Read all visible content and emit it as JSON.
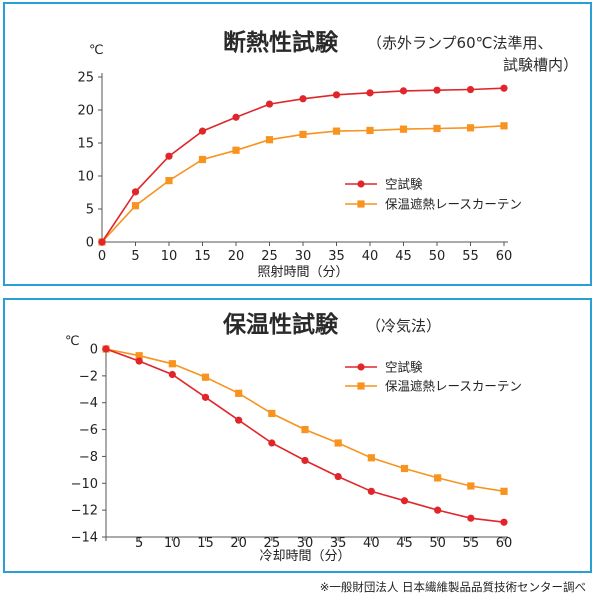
{
  "chart_data": [
    {
      "type": "line",
      "title": "断熱性試験",
      "subtitle_line1": "（赤外ランプ60℃法準用、",
      "subtitle_line2": "試験槽内）",
      "unit": "℃",
      "xlabel": "照射時間（分）",
      "x": [
        0,
        5,
        10,
        15,
        20,
        25,
        30,
        35,
        40,
        45,
        50,
        55,
        60
      ],
      "xlim": [
        0,
        60
      ],
      "ylim": [
        0,
        25
      ],
      "yticks": [
        0,
        5,
        10,
        15,
        20,
        25
      ],
      "series": [
        {
          "name": "空試験",
          "color": "#e0262b",
          "marker": "circle",
          "values": [
            0,
            7.6,
            13,
            16.8,
            18.9,
            20.9,
            21.7,
            22.3,
            22.6,
            22.9,
            23.0,
            23.1,
            23.3
          ]
        },
        {
          "name": "保温遮熱レースカーテン",
          "color": "#f7931e",
          "marker": "square",
          "values": [
            0,
            5.5,
            9.3,
            12.5,
            13.9,
            15.5,
            16.3,
            16.8,
            16.9,
            17.1,
            17.2,
            17.3,
            17.6
          ]
        }
      ],
      "legend_position": "center-right",
      "grid": false
    },
    {
      "type": "line",
      "title": "保温性試験",
      "subtitle_line1": "（冷気法）",
      "unit": "℃",
      "xlabel": "冷却時間（分）",
      "x": [
        0,
        5,
        10,
        15,
        20,
        25,
        30,
        35,
        40,
        45,
        50,
        55,
        60
      ],
      "xlim": [
        0,
        60
      ],
      "ylim": [
        -14,
        0
      ],
      "yticks": [
        0,
        -2,
        -4,
        -6,
        -8,
        -10,
        -12,
        -14
      ],
      "series": [
        {
          "name": "空試験",
          "color": "#e0262b",
          "marker": "circle",
          "values": [
            0,
            -0.9,
            -1.9,
            -3.6,
            -5.3,
            -7.0,
            -8.3,
            -9.5,
            -10.6,
            -11.3,
            -12.0,
            -12.6,
            -12.9
          ]
        },
        {
          "name": "保温遮熱レースカーテン",
          "color": "#f7931e",
          "marker": "square",
          "values": [
            0,
            -0.5,
            -1.1,
            -2.1,
            -3.3,
            -4.8,
            -6.0,
            -7.0,
            -8.1,
            -8.9,
            -9.6,
            -10.2,
            -10.6
          ]
        }
      ],
      "legend_position": "top-right",
      "grid": false
    }
  ],
  "footnote": "※一般財団法人 日本繊維製品品質技術センター調べ"
}
